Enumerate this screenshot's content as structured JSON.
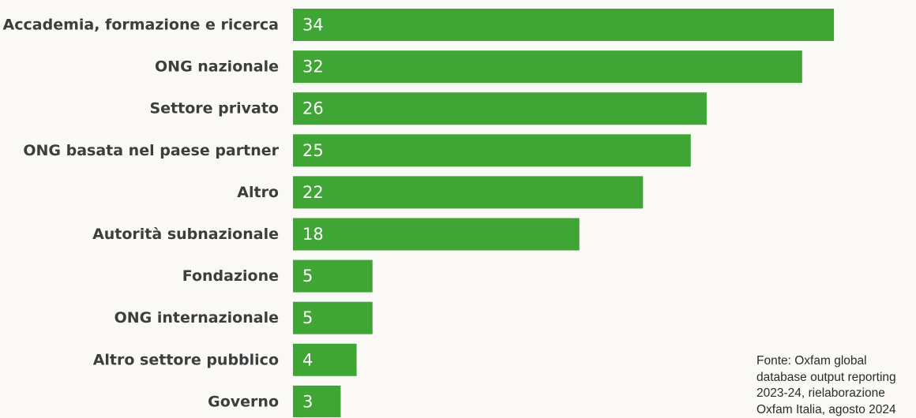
{
  "chart_data": {
    "type": "bar",
    "orientation": "horizontal",
    "categories": [
      "Accademia, formazione e ricerca",
      "ONG nazionale",
      "Settore privato",
      "ONG basata nel paese partner",
      "Altro",
      "Autorità subnazionale",
      "Fondazione",
      "ONG internazionale",
      "Altro settore pubblico",
      "Governo"
    ],
    "values": [
      34,
      32,
      26,
      25,
      22,
      18,
      5,
      5,
      4,
      3
    ],
    "bar_color": "#3fa535",
    "grid": false,
    "legend": "none"
  },
  "source": "Fonte: Oxfam global\ndatabase output reporting\n2023-24, rielaborazione\nOxfam Italia, agosto 2024"
}
